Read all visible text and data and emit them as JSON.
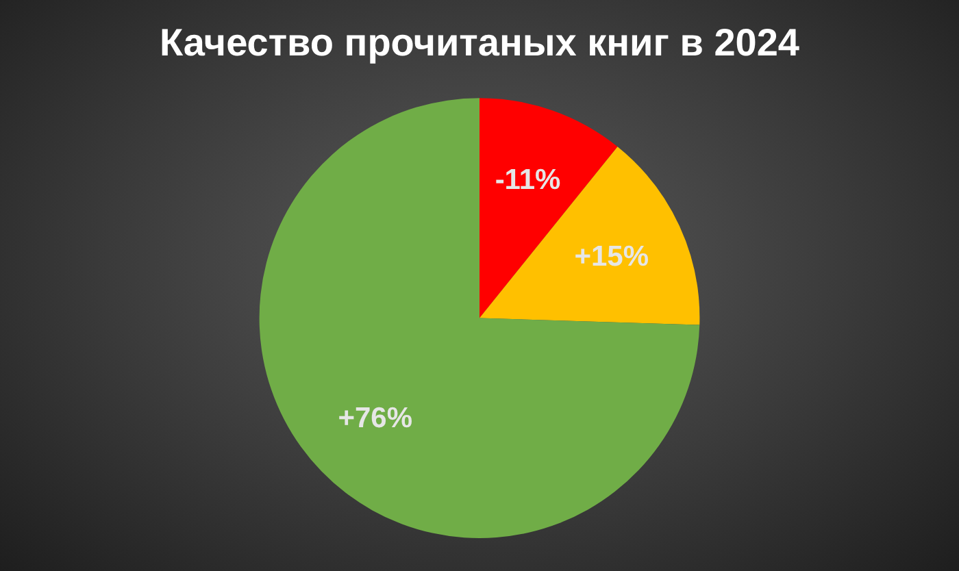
{
  "chart_data": {
    "type": "pie",
    "title": "Качество прочитаных книг в 2024",
    "categories": [
      "-11%",
      "+15%",
      "+76%"
    ],
    "values": [
      11,
      15,
      76
    ],
    "colors": [
      "#ff0000",
      "#ffc000",
      "#70ad47"
    ]
  }
}
